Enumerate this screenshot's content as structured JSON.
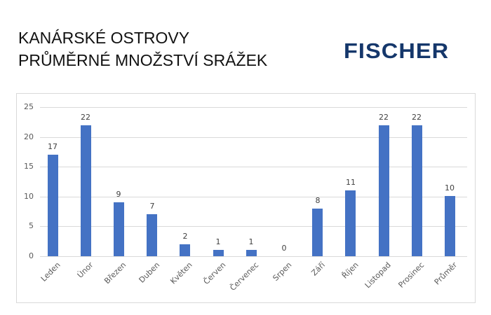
{
  "header": {
    "title_line1": "KANÁRSKÉ OSTROVY",
    "title_line2": "PRŮMĚRNÉ MNOŽSTVÍ SRÁŽEK",
    "logo_text": "FISCHER"
  },
  "colors": {
    "bar": "#4472c4",
    "logo": "#15376b",
    "grid": "#d9d9d9"
  },
  "chart_data": {
    "type": "bar",
    "title": "KANÁRSKÉ OSTROVY – PRŮMĚRNÉ MNOŽSTVÍ SRÁŽEK",
    "xlabel": "",
    "ylabel": "",
    "ylim": [
      0,
      25
    ],
    "yticks": [
      0,
      5,
      10,
      15,
      20,
      25
    ],
    "grid": true,
    "legend": "none",
    "categories": [
      "Leden",
      "Únor",
      "Březen",
      "Duben",
      "Květen",
      "Červen",
      "Červenec",
      "Srpen",
      "Září",
      "Říjen",
      "Listopad",
      "Prosinec",
      "Průměr"
    ],
    "values": [
      17,
      22,
      9,
      7,
      2,
      1,
      1,
      0,
      8,
      11,
      22,
      22,
      10.1
    ],
    "data_labels": [
      "17",
      "22",
      "9",
      "7",
      "2",
      "1",
      "1",
      "0",
      "8",
      "11",
      "22",
      "22",
      "10"
    ]
  }
}
